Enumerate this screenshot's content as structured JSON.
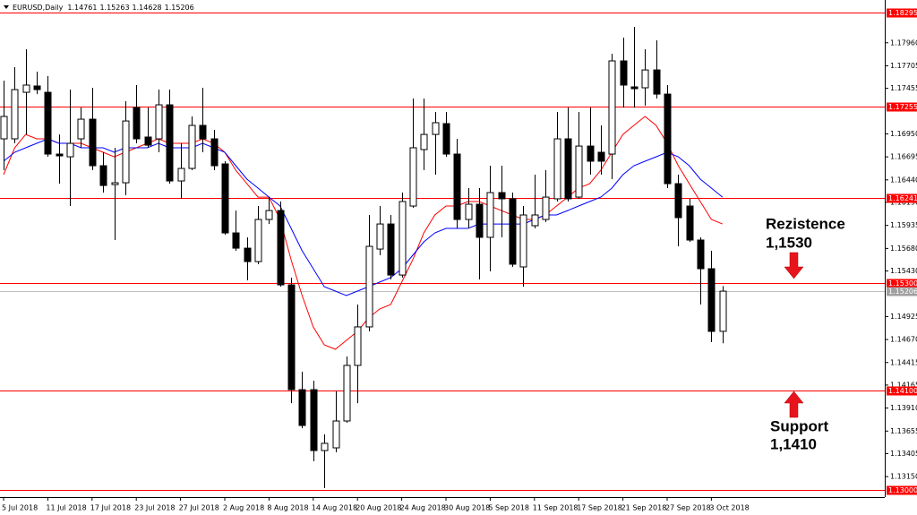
{
  "chart_data": {
    "type": "candlestick",
    "title": "EURUSD,Daily",
    "categories": [
      "5 Jul 2018",
      null,
      null,
      null,
      "11 Jul 2018",
      null,
      null,
      null,
      "17 Jul 2018",
      null,
      null,
      null,
      "23 Jul 2018",
      null,
      null,
      null,
      "27 Jul 2018",
      null,
      null,
      null,
      "2 Aug 2018",
      null,
      null,
      null,
      "8 Aug 2018",
      null,
      null,
      null,
      "14 Aug 2018",
      null,
      null,
      null,
      "20 Aug 2018",
      null,
      null,
      null,
      "24 Aug 2018",
      null,
      null,
      null,
      "30 Aug 2018",
      null,
      null,
      null,
      "5 Sep 2018",
      null,
      null,
      null,
      "11 Sep 2018",
      null,
      null,
      null,
      "17 Sep 2018",
      null,
      null,
      null,
      "21 Sep 2018",
      null,
      null,
      null,
      "27 Sep 2018",
      null,
      null,
      null,
      "3 Oct 2018",
      null
    ],
    "open": [
      1.16895,
      1.16895,
      1.17411,
      1.17481,
      1.17411,
      1.16726,
      1.16696,
      1.16895,
      1.17113,
      1.16597,
      1.16388,
      1.16408,
      1.17242,
      1.16915,
      1.16895,
      1.17272,
      1.16428,
      1.16567,
      1.17044,
      1.16895,
      1.16617,
      1.15852,
      1.15683,
      1.15534,
      1.16001,
      1.161,
      1.15276,
      1.14114,
      1.14114,
      1.13439,
      1.13469,
      1.13767,
      1.14383,
      1.1481,
      1.15673,
      1.15951,
      1.15385,
      1.1615,
      1.16776,
      1.16944,
      1.17064,
      1.16726,
      1.16001,
      1.1617,
      1.15803,
      1.16299,
      1.1623,
      1.15475,
      1.15932,
      1.16001,
      1.1623,
      1.16895,
      1.16249,
      1.16815,
      1.16746,
      1.16726,
      1.17759,
      1.17471,
      1.17461,
      1.17659,
      1.17391,
      1.16398,
      1.1615,
      1.15773,
      1.15455,
      1.14761
    ],
    "high": [
      1.1754,
      1.17689,
      1.17888,
      1.1764,
      1.1759,
      1.16944,
      1.17441,
      1.17242,
      1.17461,
      1.16746,
      1.16796,
      1.17312,
      1.17491,
      1.17242,
      1.17441,
      1.17441,
      1.16845,
      1.17143,
      1.17461,
      1.16994,
      1.16647,
      1.161,
      1.15803,
      1.1615,
      1.16249,
      1.162,
      1.15356,
      1.14313,
      1.14214,
      1.13618,
      1.14095,
      1.14482,
      1.15058,
      1.16051,
      1.1615,
      1.16051,
      1.16299,
      1.17342,
      1.17342,
      1.17193,
      1.17193,
      1.16895,
      1.16349,
      1.16349,
      1.16597,
      1.16597,
      1.16299,
      1.1615,
      1.16498,
      1.16547,
      1.17193,
      1.17242,
      1.17193,
      1.17242,
      1.17044,
      1.17838,
      1.18017,
      1.18136,
      1.17888,
      1.17987,
      1.17491,
      1.16498,
      1.1623,
      1.15803,
      1.15654,
      1.15263
    ],
    "low": [
      1.16547,
      1.16845,
      1.16944,
      1.17391,
      1.16696,
      1.16398,
      1.1615,
      1.16796,
      1.16547,
      1.16299,
      1.15773,
      1.16269,
      1.16845,
      1.16796,
      1.16746,
      1.16398,
      1.1623,
      1.16547,
      1.16746,
      1.16547,
      1.15832,
      1.15654,
      1.15326,
      1.15505,
      1.15951,
      1.15256,
      1.13965,
      1.13687,
      1.1332,
      1.13022,
      1.13419,
      1.13747,
      1.13965,
      1.1476,
      1.15604,
      1.15336,
      1.15356,
      1.1613,
      1.16547,
      1.16498,
      1.16696,
      1.15902,
      1.15902,
      1.15336,
      1.15425,
      1.15803,
      1.15475,
      1.15256,
      1.15902,
      1.15971,
      1.162,
      1.162,
      1.1623,
      1.16498,
      1.16498,
      1.16448,
      1.17242,
      1.17242,
      1.17262,
      1.17342,
      1.16349,
      1.15703,
      1.15753,
      1.15058,
      1.14641,
      1.14628
    ],
    "close": [
      1.17143,
      1.17441,
      1.17491,
      1.17441,
      1.16726,
      1.16706,
      1.16845,
      1.17113,
      1.16597,
      1.16378,
      1.16408,
      1.17093,
      1.16895,
      1.16825,
      1.17272,
      1.16428,
      1.16567,
      1.17044,
      1.16895,
      1.16597,
      1.15852,
      1.15683,
      1.15534,
      1.16001,
      1.161,
      1.15276,
      1.14114,
      1.13717,
      1.13439,
      1.13519,
      1.13767,
      1.14383,
      1.1481,
      1.15703,
      1.15951,
      1.15385,
      1.162,
      1.16796,
      1.16944,
      1.17074,
      1.16726,
      1.16001,
      1.1617,
      1.15803,
      1.16299,
      1.1623,
      1.15505,
      1.16051,
      1.16051,
      1.16249,
      1.16895,
      1.1623,
      1.16815,
      1.16647,
      1.16647,
      1.17759,
      1.17491,
      1.17451,
      1.17659,
      1.17391,
      1.16398,
      1.16021,
      1.15773,
      1.15455,
      1.1476,
      1.15206
    ],
    "moving_averages": [
      {
        "color": "#ff0000",
        "values": [
          1.16498,
          1.16796,
          1.16944,
          1.16895,
          1.16895,
          1.16845,
          1.16845,
          1.16845,
          1.16796,
          1.16746,
          1.16696,
          1.16746,
          1.16796,
          1.16845,
          1.16895,
          1.16845,
          1.16845,
          1.16845,
          1.16895,
          1.16845,
          1.16746,
          1.16547,
          1.16398,
          1.16249,
          1.16249,
          1.16001,
          1.15554,
          1.15157,
          1.1481,
          1.14611,
          1.14561,
          1.14661,
          1.1476,
          1.14909,
          1.15008,
          1.15058,
          1.15306,
          1.15554,
          1.15852,
          1.16051,
          1.1615,
          1.1615,
          1.162,
          1.162,
          1.1615,
          1.161,
          1.16051,
          1.16001,
          1.16001,
          1.16051,
          1.1615,
          1.16249,
          1.16349,
          1.16398,
          1.16547,
          1.16746,
          1.16944,
          1.17044,
          1.17143,
          1.17044,
          1.16845,
          1.16597,
          1.16398,
          1.162,
          1.16001,
          1.15951
        ]
      },
      {
        "color": "#0000ff",
        "values": [
          1.16647,
          1.16746,
          1.16796,
          1.16845,
          1.16895,
          1.16845,
          1.16845,
          1.16796,
          1.16796,
          1.16796,
          1.16746,
          1.16796,
          1.16796,
          1.16796,
          1.16845,
          1.16796,
          1.16796,
          1.16796,
          1.16845,
          1.16796,
          1.16746,
          1.16597,
          1.16448,
          1.16349,
          1.16249,
          1.1615,
          1.15902,
          1.15654,
          1.15455,
          1.15256,
          1.15207,
          1.15157,
          1.15207,
          1.15256,
          1.15306,
          1.15356,
          1.15455,
          1.15604,
          1.15753,
          1.15852,
          1.15902,
          1.15902,
          1.15902,
          1.15951,
          1.15951,
          1.15951,
          1.15951,
          1.15951,
          1.16001,
          1.16051,
          1.16051,
          1.161,
          1.1615,
          1.162,
          1.16249,
          1.16349,
          1.16498,
          1.16597,
          1.16647,
          1.16696,
          1.16746,
          1.16696,
          1.16597,
          1.16448,
          1.16349,
          1.16249
        ]
      }
    ],
    "levels": [
      1.18295,
      1.17255,
      1.16241,
      {
        "value": 1.153,
        "label": "1.15300"
      },
      {
        "value": 1.141,
        "label": "1.14100"
      },
      {
        "value": 1.13,
        "label": "1.13000"
      }
    ],
    "level_color": "#ff0000",
    "ylim": [
      1.12923,
      1.18335
    ],
    "yticks": [
      {
        "value": 1.1796,
        "label": "1.17960"
      },
      1.17705,
      1.17455,
      {
        "value": 1.1695,
        "label": "1.16950"
      },
      1.16695,
      {
        "value": 1.1644,
        "label": "1.16440"
      },
      {
        "value": 1.1619,
        "label": "1.16190"
      },
      1.15935,
      {
        "value": 1.1568,
        "label": "1.15680"
      },
      {
        "value": 1.1543,
        "label": "1.15430"
      },
      1.14925,
      {
        "value": 1.1467,
        "label": "1.14670"
      },
      1.14415,
      1.14165,
      {
        "value": 1.1391,
        "label": "1.13910"
      },
      1.13655,
      1.13405,
      {
        "value": 1.1315,
        "label": "1.13150"
      }
    ],
    "annotations": {
      "resistance_title": "Rezistence",
      "resistance_value": "1,1530",
      "support_title": "Support",
      "support_value": "1,1410"
    }
  }
}
